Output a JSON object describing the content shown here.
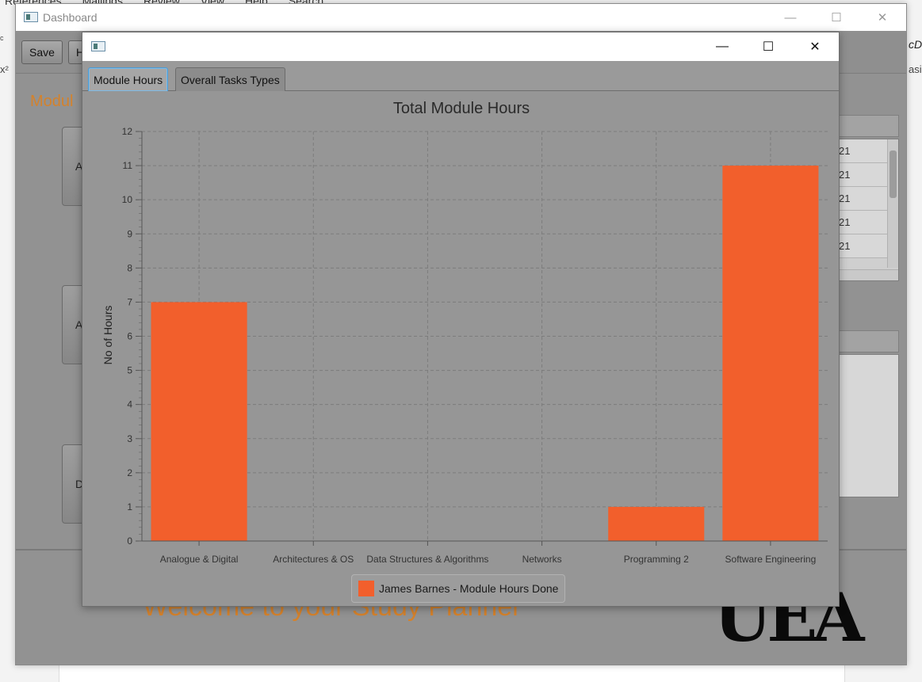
{
  "background_app": {
    "menu": [
      "References",
      "Mailings",
      "Review",
      "View",
      "Help",
      "Search"
    ],
    "right_text_1": "cDo",
    "right_text_2": "asis",
    "left_text_1": "ᶜ",
    "left_text_2": "x²"
  },
  "dashboard": {
    "title": "Dashboard",
    "toolbar": {
      "save_label": "Save",
      "second_label": "H"
    },
    "heading": "Modul",
    "side_buttons": [
      "A",
      "A",
      "D"
    ],
    "table_rows": [
      "21",
      "21",
      "21",
      "21",
      "21"
    ],
    "welcome_text": "Welcome to your Study Planner",
    "logo_text": "UEA",
    "controls": {
      "minimize": "—",
      "maximize": "☐",
      "close": "✕"
    }
  },
  "chart_window": {
    "title": "",
    "controls": {
      "minimize": "—",
      "maximize": "☐",
      "close": "✕"
    },
    "tabs": [
      {
        "label": "Module Hours",
        "active": true
      },
      {
        "label": "Overall Tasks Types",
        "active": false
      }
    ]
  },
  "colors": {
    "bar": "#f25f2c",
    "accent_orange": "#d4822c",
    "tab_focus": "#4e9bd2"
  },
  "chart_data": {
    "type": "bar",
    "title": "Total Module Hours",
    "xlabel": "",
    "ylabel": "No of Hours",
    "categories": [
      "Analogue & Digital",
      "Architectures & OS",
      "Data Structures & Algorithms",
      "Networks",
      "Programming 2",
      "Software Engineering"
    ],
    "series": [
      {
        "name": "James Barnes - Module Hours Done",
        "values": [
          7,
          0,
          0,
          0,
          1,
          11
        ]
      }
    ],
    "ylim": [
      0,
      12
    ],
    "yticks": [
      0,
      1,
      2,
      3,
      4,
      5,
      6,
      7,
      8,
      9,
      10,
      11,
      12
    ],
    "grid": true,
    "legend_position": "bottom"
  }
}
